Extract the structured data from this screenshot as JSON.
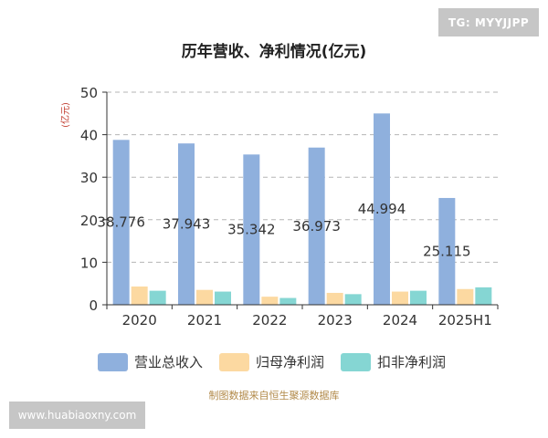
{
  "watermark_top": "TG: MYYJJPP",
  "watermark_bottom": "www.huabiaoxny.com",
  "source_note": "制图数据来自恒生聚源数据库",
  "colors": {
    "revenue": "#8fb0dd",
    "net_profit": "#fcd9a1",
    "deducted_net_profit": "#85d6d3",
    "grid": "#b5b5b5",
    "axis": "#333333",
    "unit": "#c0392b",
    "source": "#b28a4a",
    "title": "#222222"
  },
  "chart_data": {
    "type": "bar",
    "title": "历年营收、净利情况(亿元)",
    "ylabel": "(亿元)",
    "xlabel": "",
    "ylim": [
      0,
      50
    ],
    "yticks": [
      0,
      10,
      20,
      30,
      40,
      50
    ],
    "grid": true,
    "legend_position": "bottom",
    "categories": [
      "2020",
      "2021",
      "2022",
      "2023",
      "2024",
      "2025H1"
    ],
    "series": [
      {
        "name": "营业总收入",
        "values": [
          38.776,
          37.943,
          35.342,
          36.973,
          44.994,
          25.115
        ],
        "labels": [
          "38.776",
          "37.943",
          "35.342",
          "36.973",
          "44.994",
          "25.115"
        ]
      },
      {
        "name": "归母净利润",
        "values": [
          4.3,
          3.5,
          1.9,
          2.8,
          3.1,
          3.7
        ]
      },
      {
        "name": "扣非净利润",
        "values": [
          3.3,
          3.1,
          1.6,
          2.5,
          3.3,
          4.1
        ]
      }
    ]
  }
}
